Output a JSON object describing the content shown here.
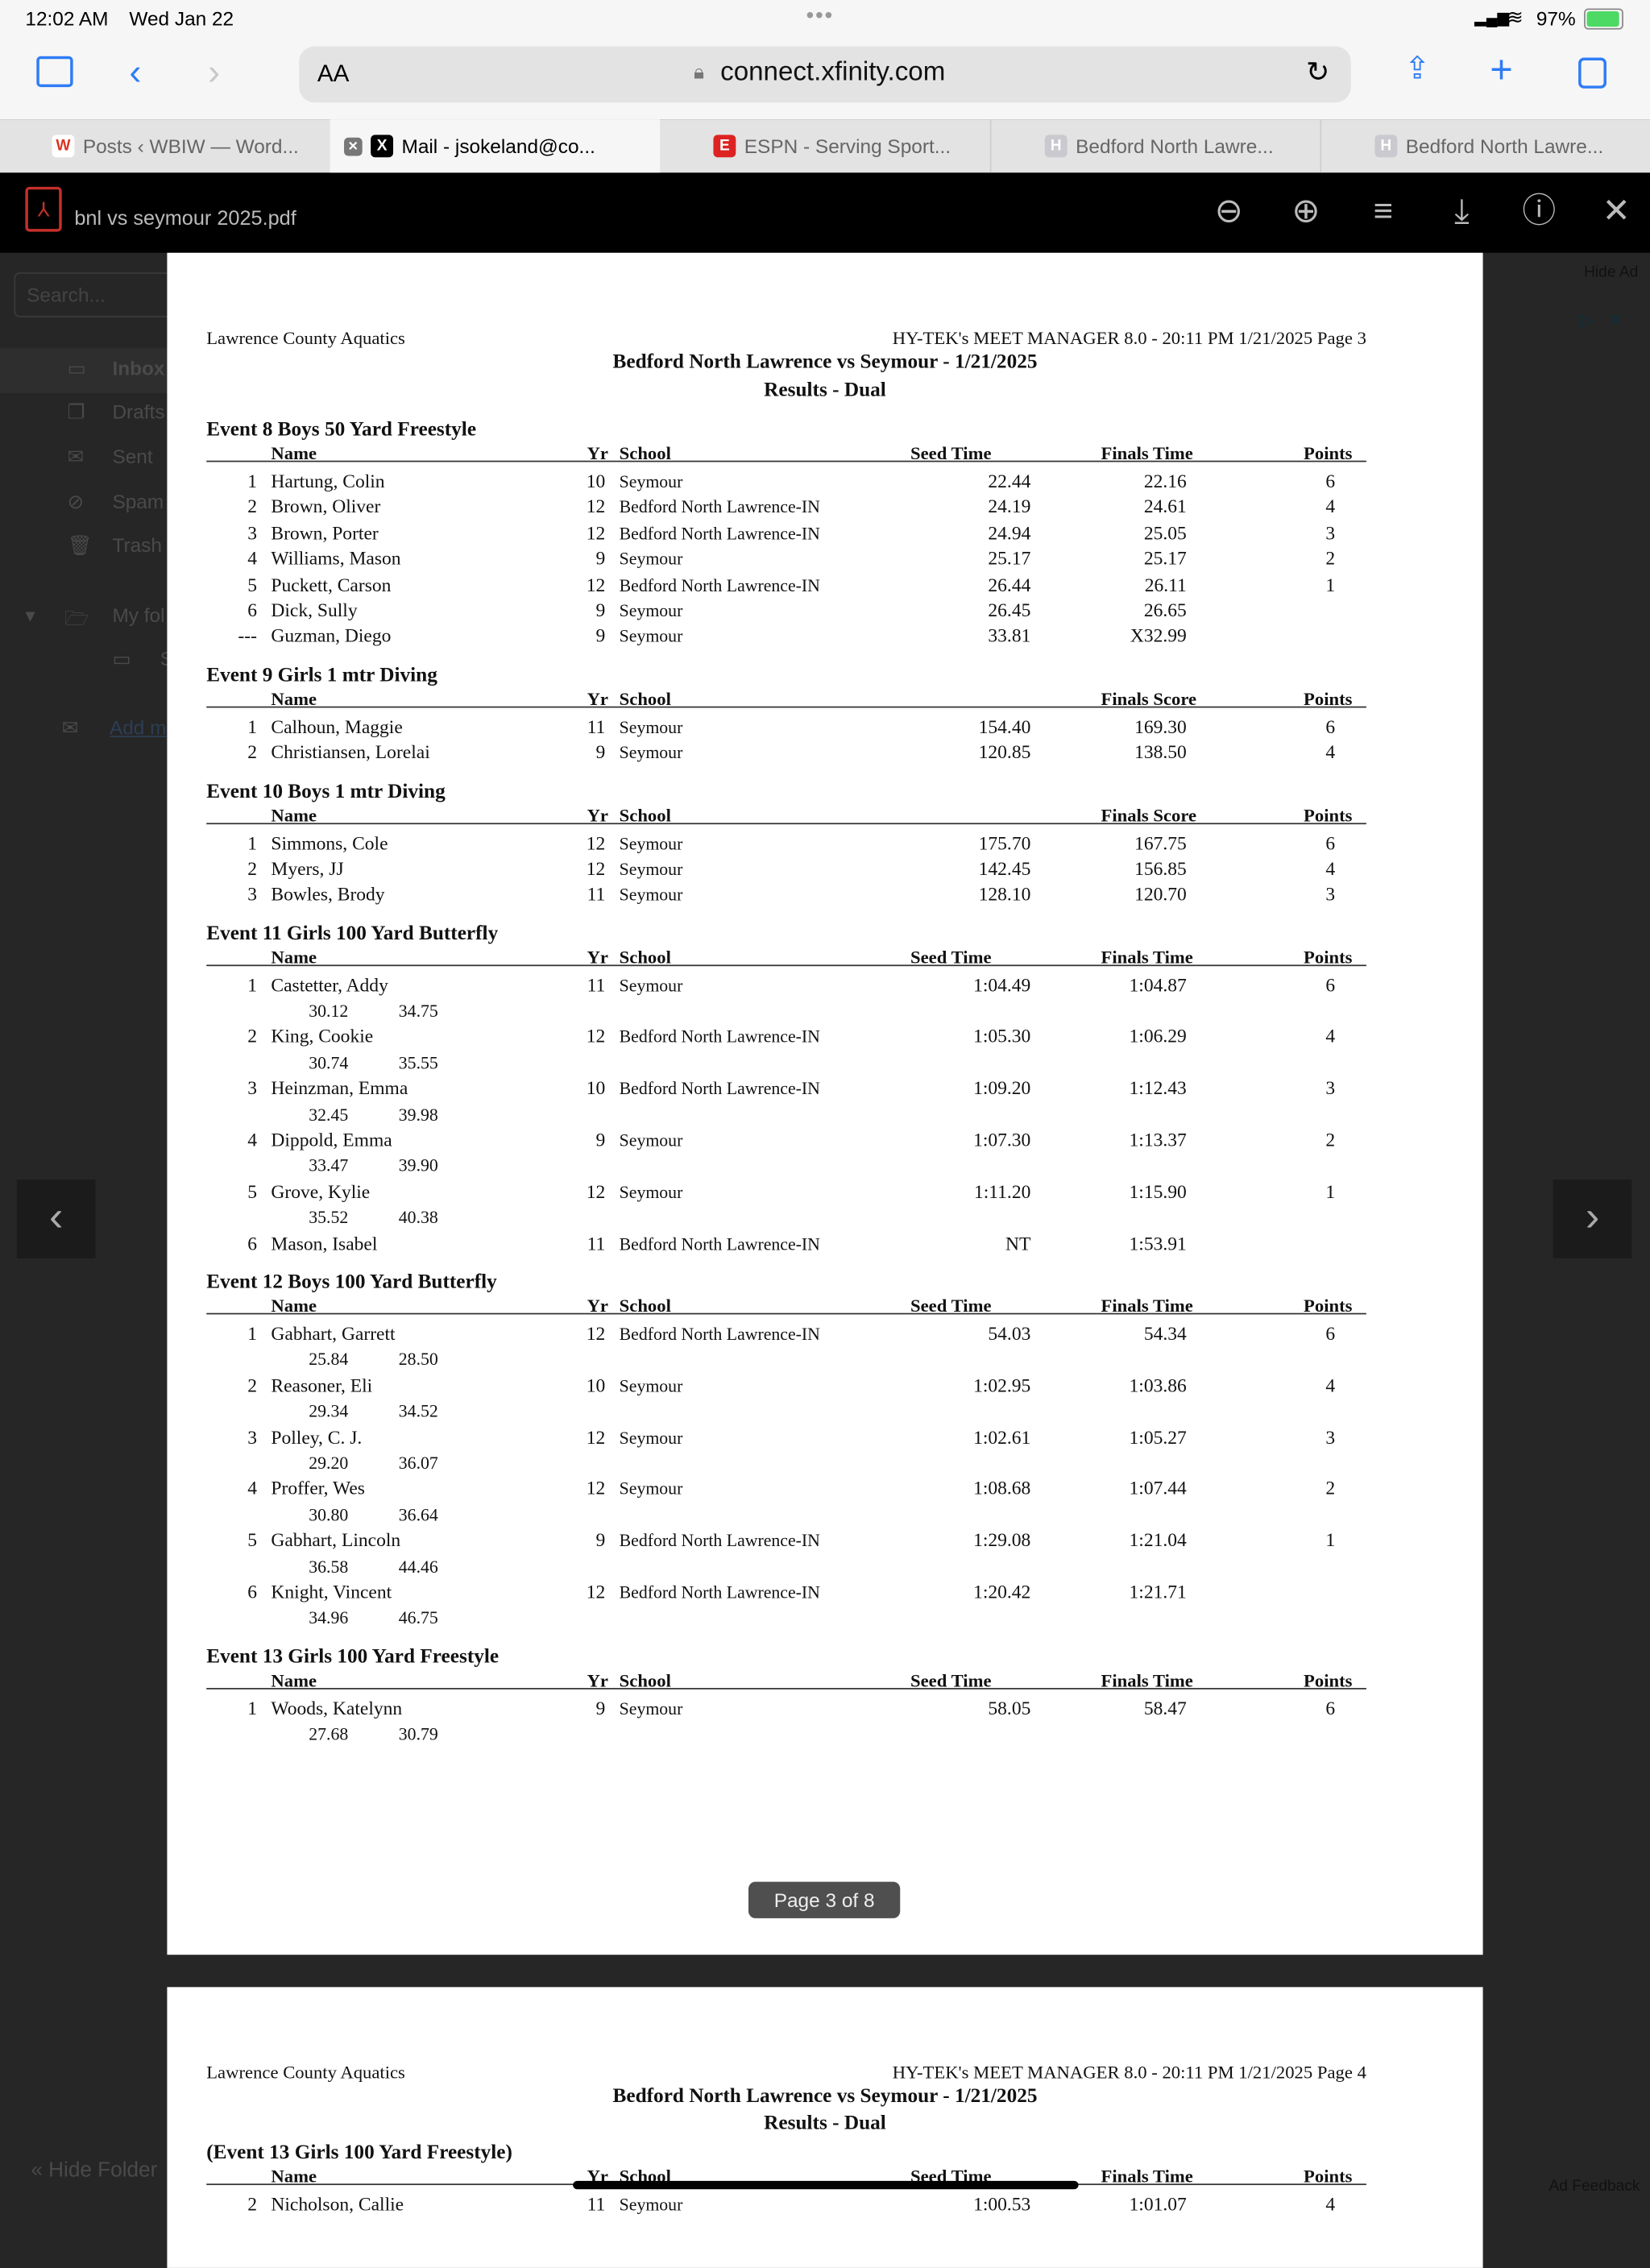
{
  "status_bar": {
    "time": "12:02 AM",
    "date": "Wed Jan 22",
    "battery": "97%",
    "battery_color": "#4cd964"
  },
  "browser": {
    "text_size_label": "AA",
    "url": "connect.xfinity.com",
    "accent_color": "#2f7cf6",
    "tabs": [
      {
        "label": "Posts ‹ WBIW — Word...",
        "favicon": "W"
      },
      {
        "label": "Mail - jsokeland@co...",
        "favicon": "X",
        "active": true
      },
      {
        "label": "ESPN - Serving Sport...",
        "favicon": "E"
      },
      {
        "label": "Bedford North Lawre...",
        "favicon": "H"
      },
      {
        "label": "Bedford North Lawre...",
        "favicon": "H"
      }
    ]
  },
  "pdf_viewer": {
    "filename": "bnl vs seymour 2025.pdf",
    "page_indicator": "Page 3 of 8"
  },
  "mail_background": {
    "search_placeholder": "Search...",
    "folders": [
      "Inbox",
      "Drafts",
      "Sent",
      "Spam",
      "Trash"
    ],
    "my_folders": "My fol",
    "subfolder": "S",
    "add_mail": "Add m",
    "hide_folders": "« Hide Folder",
    "hide_ad": "Hide Ad",
    "ad_feedback": "Ad Feedback"
  },
  "page3": {
    "org": "Lawrence County Aquatics",
    "software": "HY-TEK's MEET MANAGER 8.0 - 20:11 PM  1/21/2025  Page 3",
    "meet_title": "Bedford North Lawrence vs Seymour - 1/21/2025",
    "subtitle": "Results - Dual",
    "events": [
      {
        "title": "Event 8  Boys 50 Yard Freestyle",
        "headers": {
          "name": "Name",
          "yr": "Yr",
          "school": "School",
          "seed": "Seed Time",
          "finals": "Finals Time",
          "points": "Points"
        },
        "rows": [
          {
            "place": "1",
            "name": "Hartung, Colin",
            "yr": "10",
            "school": "Seymour",
            "seed": "22.44",
            "finals": "22.16",
            "points": "6"
          },
          {
            "place": "2",
            "name": "Brown, Oliver",
            "yr": "12",
            "school": "Bedford North Lawrence-IN",
            "seed": "24.19",
            "finals": "24.61",
            "points": "4"
          },
          {
            "place": "3",
            "name": "Brown, Porter",
            "yr": "12",
            "school": "Bedford North Lawrence-IN",
            "seed": "24.94",
            "finals": "25.05",
            "points": "3"
          },
          {
            "place": "4",
            "name": "Williams, Mason",
            "yr": "9",
            "school": "Seymour",
            "seed": "25.17",
            "finals": "25.17",
            "points": "2"
          },
          {
            "place": "5",
            "name": "Puckett, Carson",
            "yr": "12",
            "school": "Bedford North Lawrence-IN",
            "seed": "26.44",
            "finals": "26.11",
            "points": "1"
          },
          {
            "place": "6",
            "name": "Dick, Sully",
            "yr": "9",
            "school": "Seymour",
            "seed": "26.45",
            "finals": "26.65",
            "points": ""
          },
          {
            "place": "---",
            "name": "Guzman, Diego",
            "yr": "9",
            "school": "Seymour",
            "seed": "33.81",
            "finals": "X32.99",
            "points": ""
          }
        ]
      },
      {
        "title": "Event 9  Girls 1 mtr Diving",
        "headers": {
          "name": "Name",
          "yr": "Yr",
          "school": "School",
          "seed": "",
          "finals": "Finals Score",
          "points": "Points"
        },
        "rows": [
          {
            "place": "1",
            "name": "Calhoun, Maggie",
            "yr": "11",
            "school": "Seymour",
            "seed": "154.40",
            "finals": "169.30",
            "points": "6"
          },
          {
            "place": "2",
            "name": "Christiansen, Lorelai",
            "yr": "9",
            "school": "Seymour",
            "seed": "120.85",
            "finals": "138.50",
            "points": "4"
          }
        ]
      },
      {
        "title": "Event 10  Boys 1 mtr Diving",
        "headers": {
          "name": "Name",
          "yr": "Yr",
          "school": "School",
          "seed": "",
          "finals": "Finals Score",
          "points": "Points"
        },
        "rows": [
          {
            "place": "1",
            "name": "Simmons, Cole",
            "yr": "12",
            "school": "Seymour",
            "seed": "175.70",
            "finals": "167.75",
            "points": "6"
          },
          {
            "place": "2",
            "name": "Myers, JJ",
            "yr": "12",
            "school": "Seymour",
            "seed": "142.45",
            "finals": "156.85",
            "points": "4"
          },
          {
            "place": "3",
            "name": "Bowles, Brody",
            "yr": "11",
            "school": "Seymour",
            "seed": "128.10",
            "finals": "120.70",
            "points": "3"
          }
        ]
      },
      {
        "title": "Event 11  Girls 100 Yard Butterfly",
        "headers": {
          "name": "Name",
          "yr": "Yr",
          "school": "School",
          "seed": "Seed Time",
          "finals": "Finals Time",
          "points": "Points"
        },
        "rows": [
          {
            "place": "1",
            "name": "Castetter, Addy",
            "yr": "11",
            "school": "Seymour",
            "seed": "1:04.49",
            "finals": "1:04.87",
            "points": "6",
            "splits": [
              "30.12",
              "34.75"
            ]
          },
          {
            "place": "2",
            "name": "King, Cookie",
            "yr": "12",
            "school": "Bedford North Lawrence-IN",
            "seed": "1:05.30",
            "finals": "1:06.29",
            "points": "4",
            "splits": [
              "30.74",
              "35.55"
            ]
          },
          {
            "place": "3",
            "name": "Heinzman, Emma",
            "yr": "10",
            "school": "Bedford North Lawrence-IN",
            "seed": "1:09.20",
            "finals": "1:12.43",
            "points": "3",
            "splits": [
              "32.45",
              "39.98"
            ]
          },
          {
            "place": "4",
            "name": "Dippold, Emma",
            "yr": "9",
            "school": "Seymour",
            "seed": "1:07.30",
            "finals": "1:13.37",
            "points": "2",
            "splits": [
              "33.47",
              "39.90"
            ]
          },
          {
            "place": "5",
            "name": "Grove, Kylie",
            "yr": "12",
            "school": "Seymour",
            "seed": "1:11.20",
            "finals": "1:15.90",
            "points": "1",
            "splits": [
              "35.52",
              "40.38"
            ]
          },
          {
            "place": "6",
            "name": "Mason, Isabel",
            "yr": "11",
            "school": "Bedford North Lawrence-IN",
            "seed": "NT",
            "finals": "1:53.91",
            "points": ""
          }
        ]
      },
      {
        "title": "Event 12  Boys 100 Yard Butterfly",
        "headers": {
          "name": "Name",
          "yr": "Yr",
          "school": "School",
          "seed": "Seed Time",
          "finals": "Finals Time",
          "points": "Points"
        },
        "rows": [
          {
            "place": "1",
            "name": "Gabhart, Garrett",
            "yr": "12",
            "school": "Bedford North Lawrence-IN",
            "seed": "54.03",
            "finals": "54.34",
            "points": "6",
            "splits": [
              "25.84",
              "28.50"
            ]
          },
          {
            "place": "2",
            "name": "Reasoner, Eli",
            "yr": "10",
            "school": "Seymour",
            "seed": "1:02.95",
            "finals": "1:03.86",
            "points": "4",
            "splits": [
              "29.34",
              "34.52"
            ]
          },
          {
            "place": "3",
            "name": "Polley, C. J.",
            "yr": "12",
            "school": "Seymour",
            "seed": "1:02.61",
            "finals": "1:05.27",
            "points": "3",
            "splits": [
              "29.20",
              "36.07"
            ]
          },
          {
            "place": "4",
            "name": "Proffer, Wes",
            "yr": "12",
            "school": "Seymour",
            "seed": "1:08.68",
            "finals": "1:07.44",
            "points": "2",
            "splits": [
              "30.80",
              "36.64"
            ]
          },
          {
            "place": "5",
            "name": "Gabhart, Lincoln",
            "yr": "9",
            "school": "Bedford North Lawrence-IN",
            "seed": "1:29.08",
            "finals": "1:21.04",
            "points": "1",
            "splits": [
              "36.58",
              "44.46"
            ]
          },
          {
            "place": "6",
            "name": "Knight, Vincent",
            "yr": "12",
            "school": "Bedford North Lawrence-IN",
            "seed": "1:20.42",
            "finals": "1:21.71",
            "points": "",
            "splits": [
              "34.96",
              "46.75"
            ]
          }
        ]
      },
      {
        "title": "Event 13  Girls 100 Yard Freestyle",
        "headers": {
          "name": "Name",
          "yr": "Yr",
          "school": "School",
          "seed": "Seed Time",
          "finals": "Finals Time",
          "points": "Points"
        },
        "rows": [
          {
            "place": "1",
            "name": "Woods, Katelynn",
            "yr": "9",
            "school": "Seymour",
            "seed": "58.05",
            "finals": "58.47",
            "points": "6",
            "splits": [
              "27.68",
              "30.79"
            ]
          }
        ]
      }
    ]
  },
  "page4": {
    "org": "Lawrence County Aquatics",
    "software": "HY-TEK's MEET MANAGER 8.0 - 20:11 PM  1/21/2025  Page 4",
    "meet_title": "Bedford North Lawrence vs Seymour - 1/21/2025",
    "subtitle": "Results - Dual",
    "events": [
      {
        "title": "(Event 13  Girls 100 Yard Freestyle)",
        "headers": {
          "name": "Name",
          "yr": "Yr",
          "school": "School",
          "seed": "Seed Time",
          "finals": "Finals Time",
          "points": "Points"
        },
        "rows": [
          {
            "place": "2",
            "name": "Nicholson, Callie",
            "yr": "11",
            "school": "Seymour",
            "seed": "1:00.53",
            "finals": "1:01.07",
            "points": "4"
          }
        ]
      }
    ]
  }
}
